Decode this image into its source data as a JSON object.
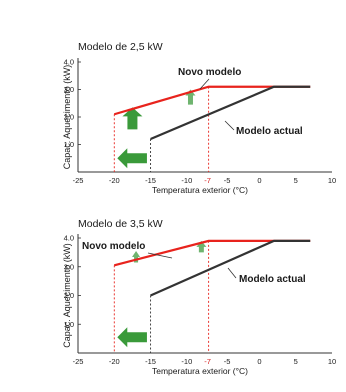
{
  "chart_data": [
    {
      "type": "line",
      "title": "Modelo de 2,5 kW",
      "xlabel": "Temperatura exterior (°C)",
      "ylabel": "Capac. Aquecimento (kW)",
      "xlim": [
        -25,
        10
      ],
      "ylim": [
        0,
        4.0
      ],
      "xticks": [
        -25,
        -20,
        -15,
        -10,
        -7,
        -5,
        0,
        5,
        10
      ],
      "highlight_ticks": [
        -7
      ],
      "yticks": [
        1.0,
        2.0,
        3.0,
        4.0
      ],
      "grid": false,
      "series": [
        {
          "name": "Novo modelo",
          "color": "#e8231d",
          "x": [
            -20,
            -7,
            7
          ],
          "y": [
            2.1,
            3.1,
            3.1
          ]
        },
        {
          "name": "Modelo actual",
          "color": "#333333",
          "x": [
            -15,
            2,
            7
          ],
          "y": [
            1.2,
            3.1,
            3.1
          ]
        }
      ],
      "annotations": [
        {
          "text": "Novo modelo",
          "series": "Novo modelo"
        },
        {
          "text": "Modelo actual",
          "series": "Modelo actual"
        }
      ]
    },
    {
      "type": "line",
      "title": "Modelo de 3,5 kW",
      "xlabel": "Temperatura exterior (°C)",
      "ylabel": "Capac. Aquecimento (kW)",
      "xlim": [
        -25,
        10
      ],
      "ylim": [
        0,
        4.0
      ],
      "xticks": [
        -25,
        -20,
        -15,
        -10,
        -7,
        -5,
        0,
        5,
        10
      ],
      "highlight_ticks": [
        -7
      ],
      "yticks": [
        1.0,
        2.0,
        3.0,
        4.0
      ],
      "grid": false,
      "series": [
        {
          "name": "Novo modelo",
          "color": "#e8231d",
          "x": [
            -20,
            -7,
            7
          ],
          "y": [
            3.05,
            3.9,
            3.9
          ]
        },
        {
          "name": "Modelo actual",
          "color": "#333333",
          "x": [
            -15,
            2,
            7
          ],
          "y": [
            2.0,
            3.9,
            3.9
          ]
        }
      ],
      "annotations": [
        {
          "text": "Novo modelo",
          "series": "Novo modelo"
        },
        {
          "text": "Modelo actual",
          "series": "Modelo actual"
        }
      ]
    }
  ]
}
